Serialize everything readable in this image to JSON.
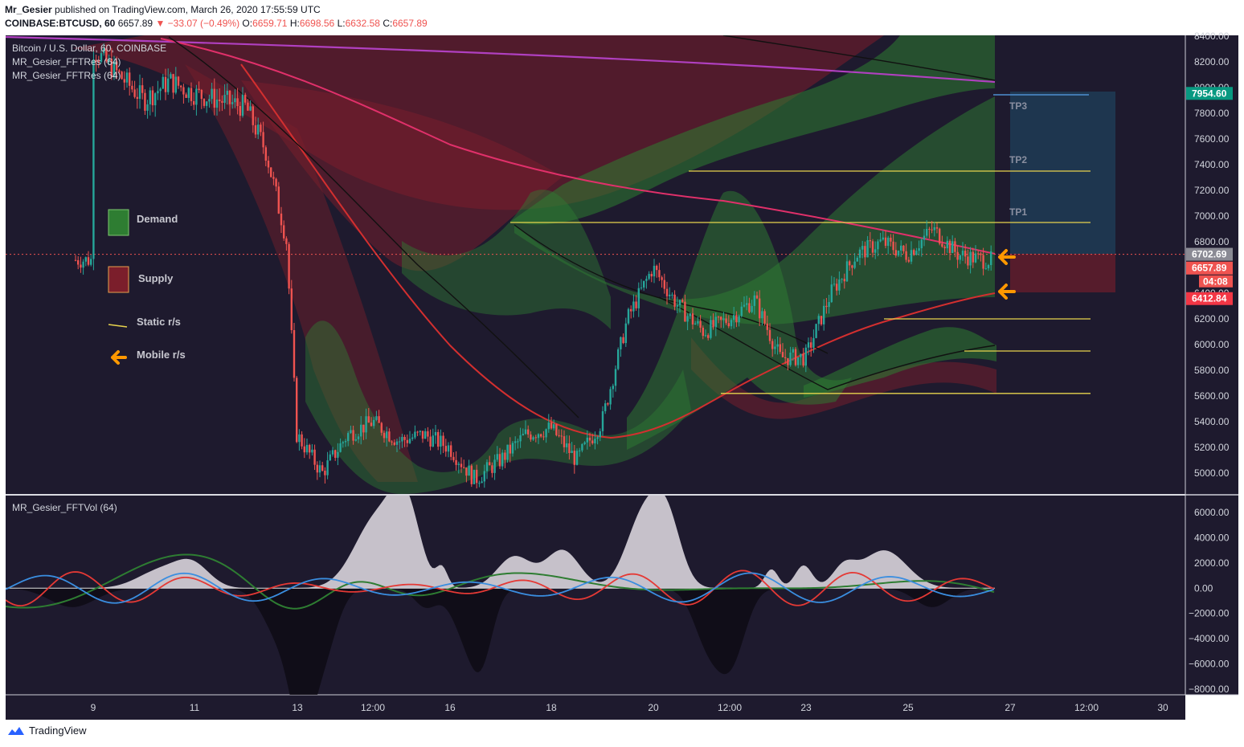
{
  "header": {
    "author": "Mr_Gesier",
    "published_text": "published on TradingView.com, March 26, 2020 17:55:59 UTC",
    "symbol": "COINBASE:BTCUSD, 60",
    "last": "6657.89",
    "change": "−33.07 (−0.49%)",
    "o_label": "O:",
    "o": "6659.71",
    "h_label": "H:",
    "h": "6698.56",
    "l_label": "L:",
    "l": "6632.58",
    "c_label": "C:",
    "c": "6657.89"
  },
  "legend": {
    "line1": "Bitcoin / U.S. Dollar, 60, COINBASE",
    "line2": "MR_Gesier_FFTRes (64)",
    "line3": "MR_Gesier_FFTRes (64)",
    "osc": "MR_Gesier_FFTVol (64)"
  },
  "key": {
    "demand": "Demand",
    "supply": "Supply",
    "static": "Static r/s",
    "mobile": "Mobile r/s"
  },
  "targets": [
    "TP1",
    "TP2",
    "TP3"
  ],
  "price_badges": {
    "tp3": "7954.60",
    "entry": "6702.69",
    "last": "6657.89",
    "countdown": "04:08",
    "stop": "6412.84"
  },
  "colors": {
    "bg": "#1e1a2e",
    "up": "#26a69a",
    "down": "#ef5350",
    "demand": "#2e7d32",
    "supply": "#7b1e2b",
    "static_line": "#e8d44d",
    "arrow": "#ff9800",
    "magenta": "#b040c0",
    "pink": "#e0306a",
    "red_ma": "#d32f2f"
  },
  "brand": "TradingView",
  "chart_data": [
    {
      "type": "candlestick",
      "title": "Bitcoin / U.S. Dollar, 60, COINBASE",
      "x_ticks": [
        "9",
        "11",
        "13",
        "12:00",
        "16",
        "18",
        "20",
        "12:00",
        "23",
        "25",
        "27",
        "12:00",
        "30"
      ],
      "y_ticks": [
        5000,
        5200,
        5400,
        5600,
        5800,
        6000,
        6200,
        6400,
        6600,
        6800,
        7000,
        7200,
        7400,
        7600,
        7800,
        8000,
        8200,
        8400
      ],
      "ylim": [
        4850,
        8420
      ],
      "close_path": [
        [
          "9",
          8300
        ],
        [
          "10",
          7900
        ],
        [
          "10.5",
          8050
        ],
        [
          "11",
          7950
        ],
        [
          "11.5",
          7900
        ],
        [
          "12",
          7850
        ],
        [
          "12.4",
          7500
        ],
        [
          "12.8",
          6800
        ],
        [
          "13",
          5300
        ],
        [
          "13.5",
          5000
        ],
        [
          "14",
          5300
        ],
        [
          "14.5",
          5400
        ],
        [
          "15",
          5250
        ],
        [
          "15.5",
          5300
        ],
        [
          "16",
          5200
        ],
        [
          "16.5",
          4950
        ],
        [
          "17",
          5100
        ],
        [
          "17.5",
          5300
        ],
        [
          "18",
          5350
        ],
        [
          "18.5",
          5100
        ],
        [
          "19",
          5400
        ],
        [
          "19.5",
          6200
        ],
        [
          "20",
          6600
        ],
        [
          "20.5",
          6300
        ],
        [
          "21",
          6100
        ],
        [
          "21.5",
          6200
        ],
        [
          "22",
          6350
        ],
        [
          "22.5",
          5900
        ],
        [
          "23",
          5900
        ],
        [
          "23.5",
          6400
        ],
        [
          "24",
          6700
        ],
        [
          "24.5",
          6800
        ],
        [
          "25",
          6700
        ],
        [
          "25.5",
          6900
        ],
        [
          "26",
          6700
        ],
        [
          "26.5",
          6657.89
        ]
      ],
      "static_levels": [
        6950,
        7350,
        6200,
        5950,
        5620
      ],
      "targets": {
        "TP1": 6950,
        "TP2": 7350,
        "TP3": 7954.6
      },
      "entry": 6702.69,
      "stop": 6412.84,
      "last": 6657.89
    },
    {
      "type": "line",
      "title": "MR_Gesier_FFTVol (64)",
      "y_ticks": [
        6000,
        4000,
        2000,
        0,
        -2000,
        -4000,
        -6000,
        -8000
      ],
      "ylim": [
        -8300,
        6500
      ]
    }
  ]
}
